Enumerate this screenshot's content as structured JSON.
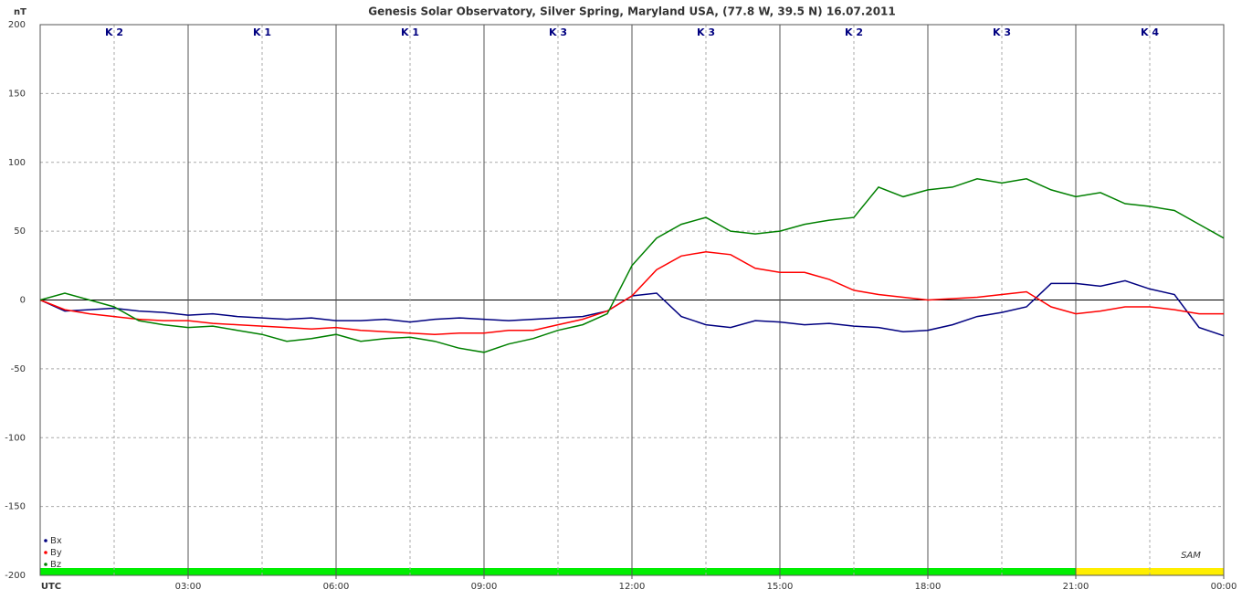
{
  "chart_data": {
    "type": "line",
    "title": "Genesis Solar Observatory, Silver Spring, Maryland USA, (77.8 W, 39.5 N)  16.07.2011",
    "y_label": "nT",
    "x_label": "UTC",
    "logo": "SAM",
    "x": [
      0,
      0.5,
      1,
      1.5,
      2,
      2.5,
      3,
      3.5,
      4,
      4.5,
      5,
      5.5,
      6,
      6.5,
      7,
      7.5,
      8,
      8.5,
      9,
      9.5,
      10,
      10.5,
      11,
      11.5,
      12,
      12.5,
      13,
      13.5,
      14,
      14.5,
      15,
      15.5,
      16,
      16.5,
      17,
      17.5,
      18,
      18.5,
      19,
      19.5,
      20,
      20.5,
      21,
      21.5,
      22,
      22.5,
      23,
      23.5,
      24
    ],
    "series": [
      {
        "name": "Bx",
        "color": "#000080",
        "values": [
          0,
          -8,
          -7,
          -6,
          -8,
          -9,
          -11,
          -10,
          -12,
          -13,
          -14,
          -13,
          -15,
          -15,
          -14,
          -16,
          -14,
          -13,
          -14,
          -15,
          -14,
          -13,
          -12,
          -8,
          3,
          5,
          -12,
          -18,
          -20,
          -15,
          -16,
          -18,
          -17,
          -19,
          -20,
          -23,
          -22,
          -18,
          -12,
          -9,
          -5,
          12,
          12,
          10,
          14,
          8,
          4,
          -20,
          -26
        ]
      },
      {
        "name": "By",
        "color": "#ff0000",
        "values": [
          0,
          -7,
          -10,
          -12,
          -14,
          -15,
          -15,
          -17,
          -18,
          -19,
          -20,
          -21,
          -20,
          -22,
          -23,
          -24,
          -25,
          -24,
          -24,
          -22,
          -22,
          -18,
          -14,
          -8,
          3,
          22,
          32,
          35,
          33,
          23,
          20,
          20,
          15,
          7,
          4,
          2,
          0,
          1,
          2,
          4,
          6,
          -5,
          -10,
          -8,
          -5,
          -5,
          -7,
          -10,
          -10
        ]
      },
      {
        "name": "Bz",
        "color": "#008000",
        "values": [
          0,
          5,
          0,
          -5,
          -15,
          -18,
          -20,
          -19,
          -22,
          -25,
          -30,
          -28,
          -25,
          -30,
          -28,
          -27,
          -30,
          -35,
          -38,
          -32,
          -28,
          -22,
          -18,
          -10,
          25,
          45,
          55,
          60,
          50,
          48,
          50,
          55,
          58,
          60,
          82,
          75,
          80,
          82,
          88,
          85,
          88,
          80,
          75,
          78,
          70,
          68,
          65,
          55,
          45
        ]
      }
    ],
    "xlim": [
      0,
      24
    ],
    "xticks": [
      {
        "value": 3,
        "label": "03:00"
      },
      {
        "value": 6,
        "label": "06:00"
      },
      {
        "value": 9,
        "label": "09:00"
      },
      {
        "value": 12,
        "label": "12:00"
      },
      {
        "value": 15,
        "label": "15:00"
      },
      {
        "value": 18,
        "label": "18:00"
      },
      {
        "value": 21,
        "label": "21:00"
      },
      {
        "value": 24,
        "label": "00:00"
      }
    ],
    "ylim": [
      -200,
      200
    ],
    "yticks": [
      200,
      150,
      100,
      50,
      0,
      -50,
      -100,
      -150,
      -200
    ],
    "grid": true,
    "legend": "lower left",
    "k_labels": [
      "K 2",
      "K 1",
      "K 1",
      "K 3",
      "K 3",
      "K 2",
      "K 3",
      "K 4"
    ],
    "k_colors": [
      "#00ee00",
      "#00ee00",
      "#00ee00",
      "#00ee00",
      "#00ee00",
      "#00ee00",
      "#00ee00",
      "#ffee00"
    ]
  }
}
